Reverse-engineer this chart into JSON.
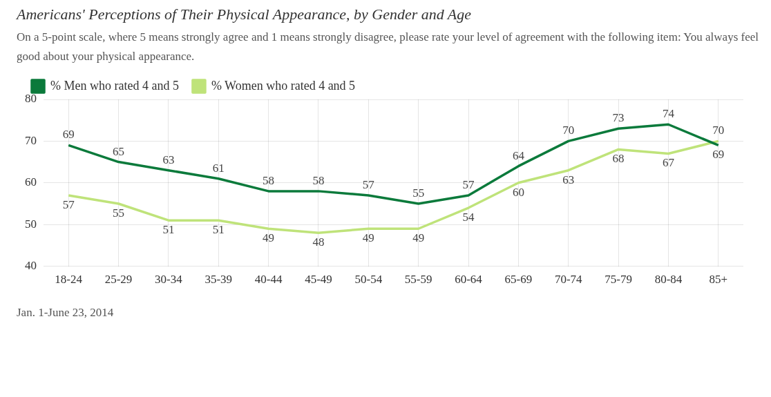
{
  "chart_data": {
    "type": "line",
    "title": "Americans' Perceptions of Their Physical Appearance, by Gender and Age",
    "subtitle": "On a 5-point scale, where 5 means strongly agree and 1 means strongly disagree, please rate your level of agreement with the following item: You always feel good about your physical appearance.",
    "categories": [
      "18-24",
      "25-29",
      "30-34",
      "35-39",
      "40-44",
      "45-49",
      "50-54",
      "55-59",
      "60-64",
      "65-69",
      "70-74",
      "75-79",
      "80-84",
      "85+"
    ],
    "series": [
      {
        "name": "% Men who rated 4 and 5",
        "color": "#0b7a3b",
        "values": [
          69,
          65,
          63,
          61,
          58,
          58,
          57,
          55,
          57,
          64,
          70,
          73,
          74,
          69
        ]
      },
      {
        "name": "% Women who rated 4 and 5",
        "color": "#bfe37a",
        "values": [
          57,
          55,
          51,
          51,
          49,
          48,
          49,
          49,
          54,
          60,
          63,
          68,
          67,
          70
        ]
      }
    ],
    "ylim": [
      40,
      80
    ],
    "yticks": [
      40,
      50,
      60,
      70,
      80
    ],
    "grid": true,
    "legend": "top left",
    "marker": "none",
    "line_style": "solid",
    "data_labels": true,
    "annotations": [
      "Jan. 1-June 23, 2014"
    ]
  }
}
